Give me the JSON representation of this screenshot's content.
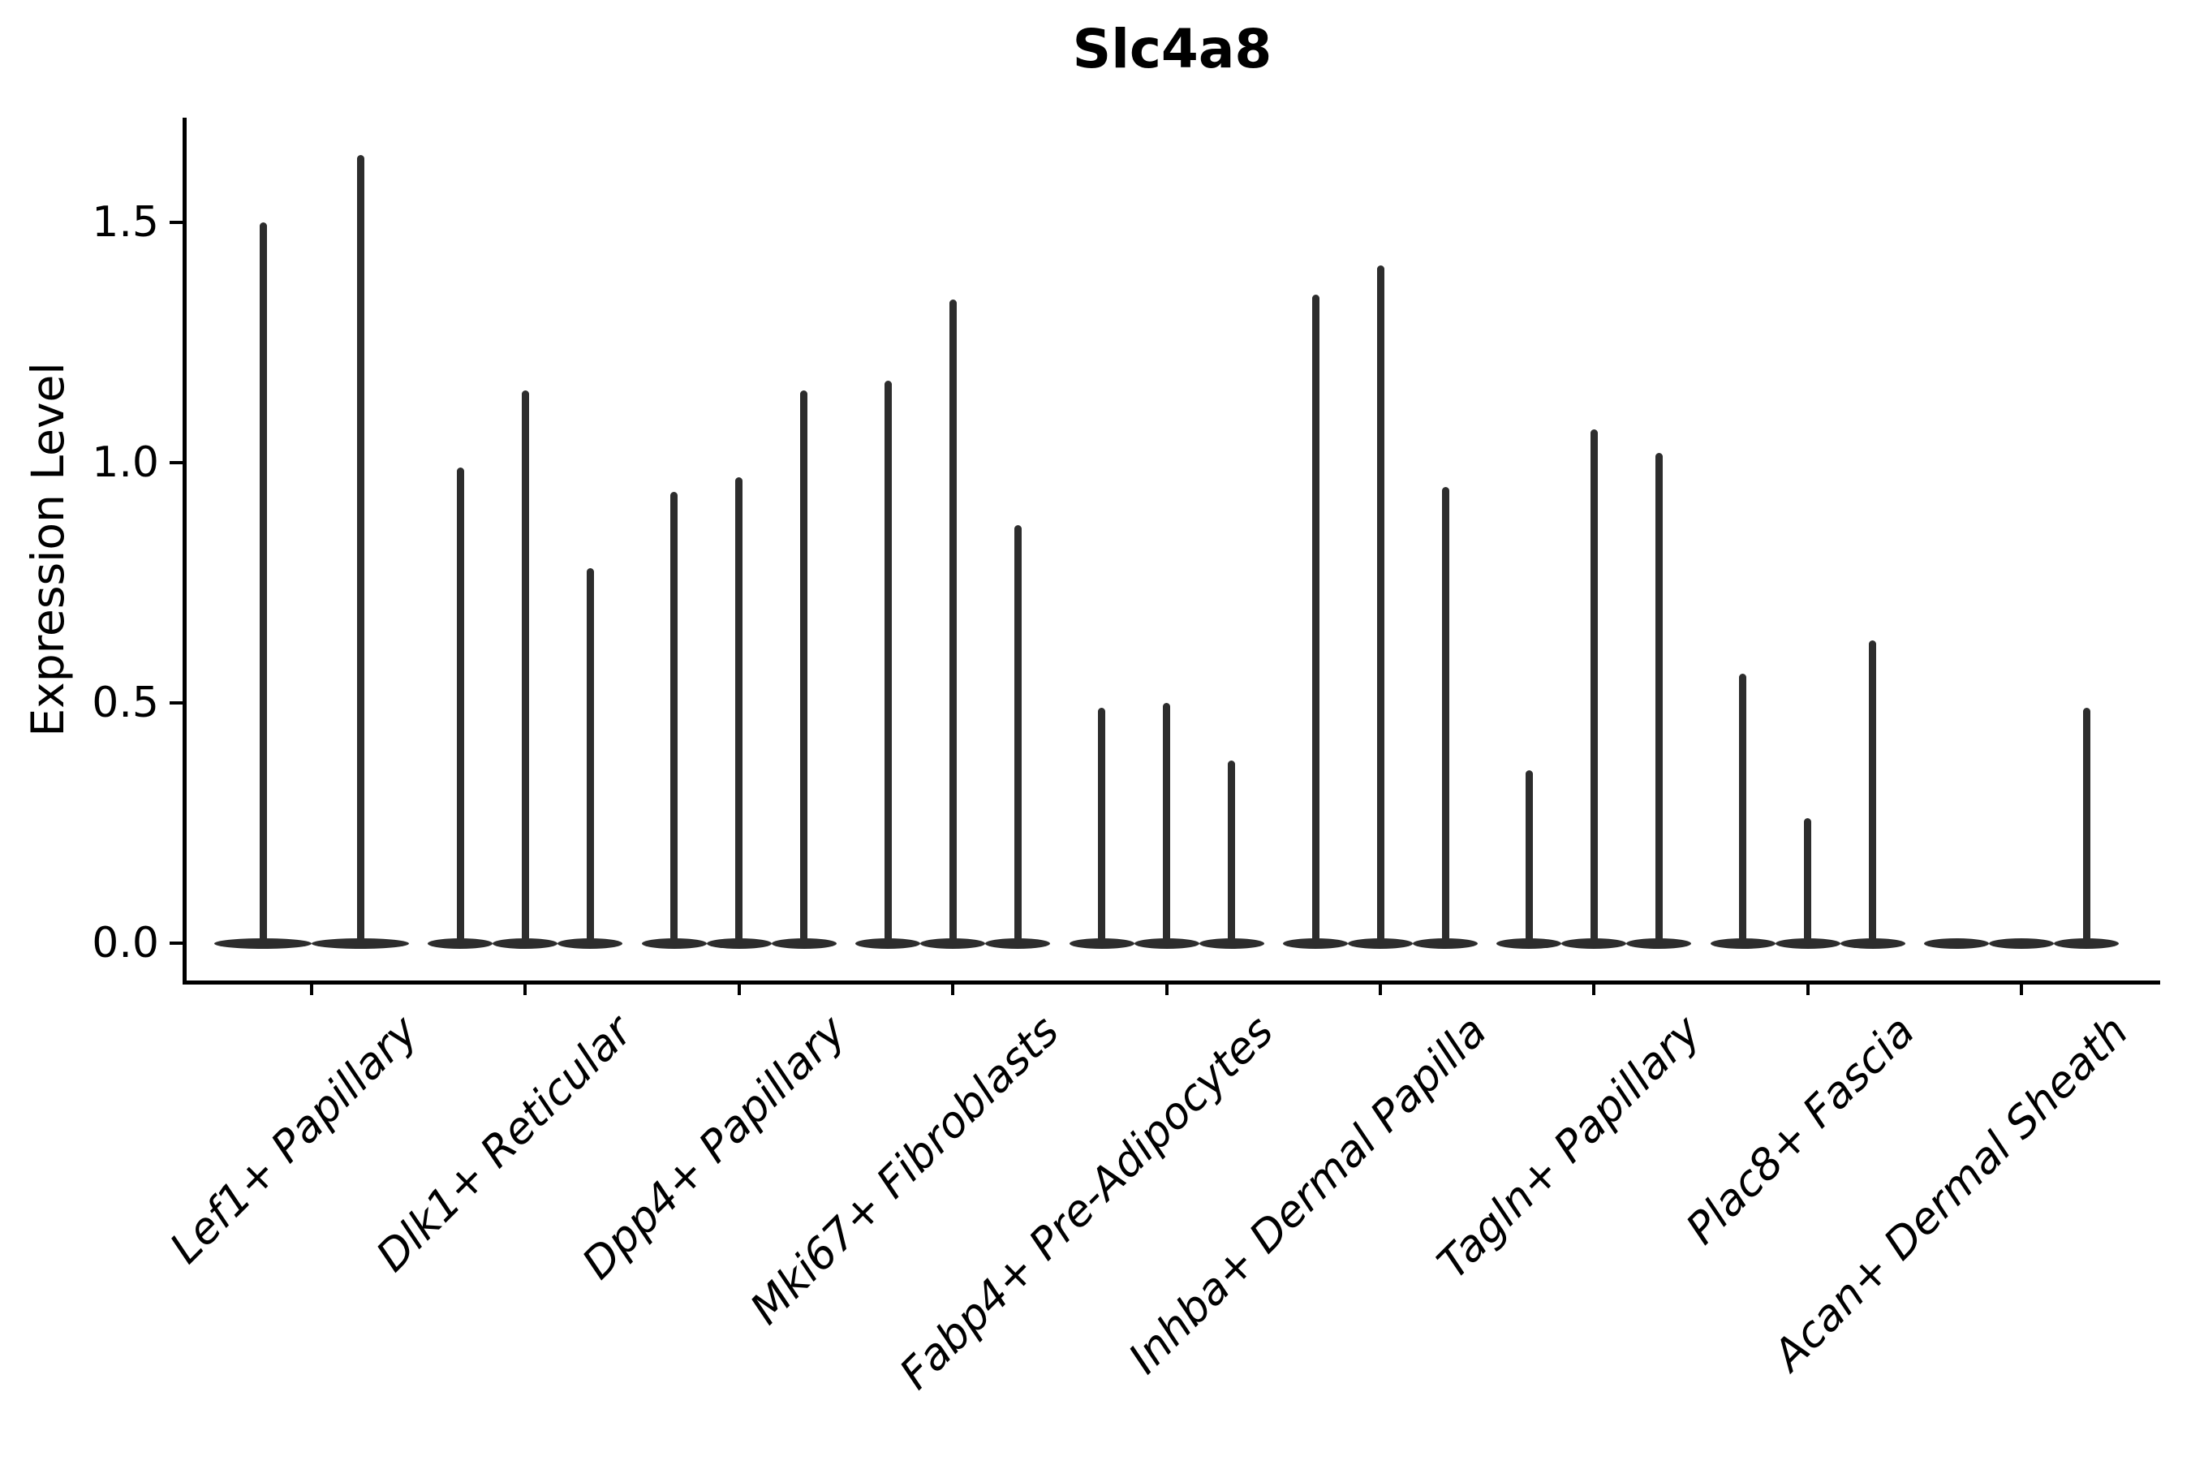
{
  "title": "Slc4a8",
  "chart_data": {
    "type": "violin",
    "title": "Slc4a8",
    "xlabel": "",
    "ylabel": "Expression Level",
    "ylim": [
      -0.08,
      1.72
    ],
    "yticks": [
      0.0,
      0.5,
      1.0,
      1.5
    ],
    "ytick_labels": [
      "0.0",
      "0.5",
      "1.0",
      "1.5"
    ],
    "grid": false,
    "legend": "none",
    "violin_color": "#2d2d2d",
    "axis_color": "#000000",
    "categories": [
      "Lef1+ Papillary",
      "Dlk1+ Reticular",
      "Dpp4+ Papillary",
      "Mki67+ Fibroblasts",
      "Fabp4+ Pre-Adipocytes",
      "Inhba+ Dermal Papilla",
      "Tagln+ Papillary",
      "Plac8+ Fascia",
      "Acan+ Dermal Sheath"
    ],
    "series": [
      {
        "category": "Lef1+ Papillary",
        "violin_maxima": [
          1.5,
          1.64
        ]
      },
      {
        "category": "Dlk1+ Reticular",
        "violin_maxima": [
          0.99,
          1.15,
          0.78
        ]
      },
      {
        "category": "Dpp4+ Papillary",
        "violin_maxima": [
          0.94,
          0.97,
          1.15
        ]
      },
      {
        "category": "Mki67+ Fibroblasts",
        "violin_maxima": [
          1.17,
          1.34,
          0.87
        ]
      },
      {
        "category": "Fabp4+ Pre-Adipocytes",
        "violin_maxima": [
          0.49,
          0.5,
          0.38
        ]
      },
      {
        "category": "Inhba+ Dermal Papilla",
        "violin_maxima": [
          1.35,
          1.41,
          0.95
        ]
      },
      {
        "category": "Tagln+ Papillary",
        "violin_maxima": [
          0.36,
          1.07,
          1.02
        ]
      },
      {
        "category": "Plac8+ Fascia",
        "violin_maxima": [
          0.56,
          0.26,
          0.63
        ]
      },
      {
        "category": "Acan+ Dermal Sheath",
        "violin_maxima": [
          0.0,
          0.0,
          0.49
        ]
      }
    ]
  }
}
